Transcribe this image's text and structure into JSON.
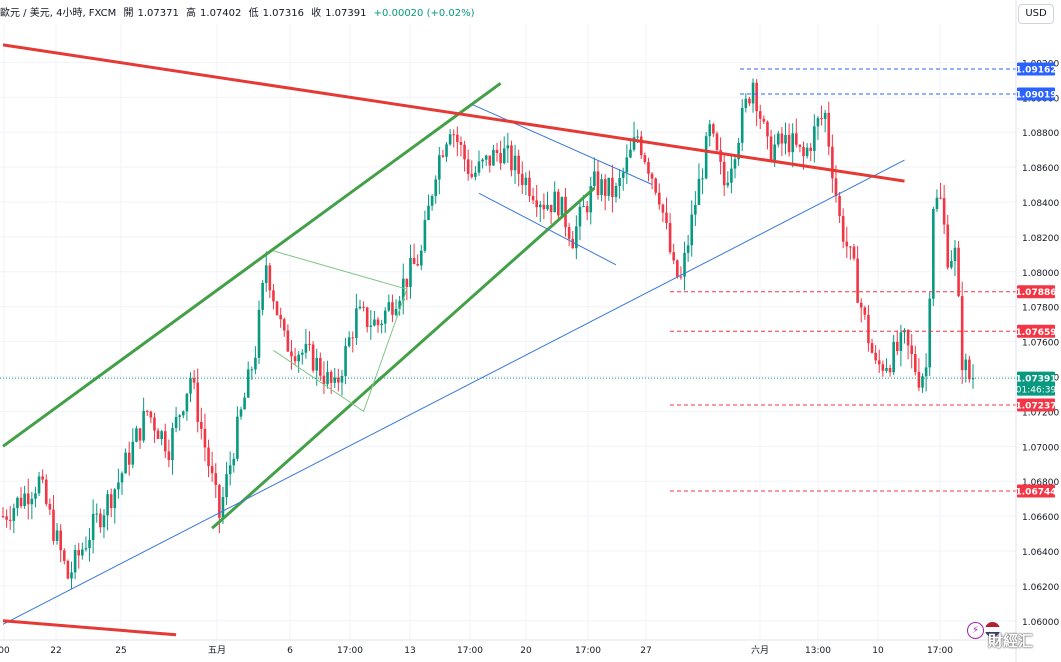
{
  "header": {
    "symbol": "歐元 / 美元, 4小時, FXCM",
    "open_label": "開",
    "open": "1.07371",
    "high_label": "高",
    "high": "1.07402",
    "low_label": "低",
    "low": "1.07316",
    "close_label": "收",
    "close": "1.07391",
    "change": "+0.00020 (+0.02%)"
  },
  "currency_button": "USD",
  "watermark": "財經汇",
  "colors": {
    "up": "#089981",
    "down": "#f23645",
    "green_line": "#43a047",
    "red_line": "#e53935",
    "blue_line": "#3a78d8"
  },
  "icons": [
    "lightning-icon",
    "us-flag-icon"
  ],
  "chart_data": {
    "type": "candlestick",
    "ylim": [
      1.0589,
      1.0942
    ],
    "y_ticks": [
      "1.09200",
      "1.09000",
      "1.08800",
      "1.08600",
      "1.08400",
      "1.08200",
      "1.08000",
      "1.07800",
      "1.07600",
      "1.07400",
      "1.07200",
      "1.07000",
      "1.06800",
      "1.06600",
      "1.06400",
      "1.06200",
      "1.06000"
    ],
    "x_ticks": [
      "00",
      "22",
      "25",
      "五月",
      "6",
      "17:00",
      "13",
      "17:00",
      "20",
      "17:00",
      "27",
      "六月",
      "13:00",
      "10",
      "17:00"
    ],
    "price_labels": [
      {
        "value": "1.09162",
        "style": "blue"
      },
      {
        "value": "1.09019",
        "style": "blue"
      },
      {
        "value": "1.07886",
        "style": "red"
      },
      {
        "value": "1.07659",
        "style": "red"
      },
      {
        "value": "1.07391",
        "style": "green",
        "countdown": "01:46:39"
      },
      {
        "value": "1.07237",
        "style": "red"
      },
      {
        "value": "1.06744",
        "style": "red"
      }
    ],
    "anchors": [
      [
        0,
        1.066
      ],
      [
        10,
        1.068
      ],
      [
        18,
        1.0625
      ],
      [
        24,
        1.065
      ],
      [
        32,
        1.068
      ],
      [
        40,
        1.072
      ],
      [
        46,
        1.07
      ],
      [
        52,
        1.074
      ],
      [
        56,
        1.07
      ],
      [
        60,
        1.066
      ],
      [
        64,
        1.07
      ],
      [
        70,
        1.0755
      ],
      [
        73,
        1.0805
      ],
      [
        78,
        1.076
      ],
      [
        86,
        1.075
      ],
      [
        92,
        1.0732
      ],
      [
        98,
        1.0775
      ],
      [
        104,
        1.077
      ],
      [
        110,
        1.079
      ],
      [
        116,
        1.081
      ],
      [
        120,
        1.086
      ],
      [
        124,
        1.0885
      ],
      [
        130,
        1.0855
      ],
      [
        138,
        1.087
      ],
      [
        144,
        1.0855
      ],
      [
        150,
        1.084
      ],
      [
        154,
        1.084
      ],
      [
        158,
        1.082
      ],
      [
        164,
        1.085
      ],
      [
        170,
        1.0845
      ],
      [
        176,
        1.0878
      ],
      [
        182,
        1.0845
      ],
      [
        186,
        1.08
      ],
      [
        188,
        1.0795
      ],
      [
        192,
        1.084
      ],
      [
        196,
        1.088
      ],
      [
        200,
        1.085
      ],
      [
        204,
        1.088
      ],
      [
        208,
        1.091
      ],
      [
        212,
        1.087
      ],
      [
        218,
        1.0875
      ],
      [
        222,
        1.0865
      ],
      [
        226,
        1.0885
      ],
      [
        228,
        1.089
      ],
      [
        232,
        1.083
      ],
      [
        236,
        1.08
      ],
      [
        238,
        1.078
      ],
      [
        242,
        1.0745
      ],
      [
        246,
        1.075
      ],
      [
        250,
        1.076
      ],
      [
        254,
        1.074
      ],
      [
        256,
        1.0745
      ],
      [
        258,
        1.084
      ],
      [
        260,
        1.084
      ],
      [
        262,
        1.081
      ],
      [
        264,
        1.081
      ],
      [
        266,
        1.075
      ],
      [
        268,
        1.07391
      ]
    ],
    "drawings": {
      "red_trendline_top": [
        [
          0,
          1.093
        ],
        [
          250,
          1.0852
        ]
      ],
      "red_trendline_bottom": [
        [
          0,
          1.06
        ],
        [
          48,
          1.0592
        ]
      ],
      "green_channel_upper": [
        [
          0,
          1.07
        ],
        [
          138,
          1.0908
        ]
      ],
      "green_channel_lower": [
        [
          58,
          1.0653
        ],
        [
          164,
          1.0848
        ]
      ],
      "blue_trendline": [
        [
          0,
          1.0598
        ],
        [
          250,
          1.0864
        ]
      ],
      "blue_channel_upper": [
        [
          130,
          1.0896
        ],
        [
          180,
          1.085
        ]
      ],
      "blue_channel_lower": [
        [
          132,
          1.0845
        ],
        [
          170,
          1.0804
        ]
      ],
      "green_triangle": [
        [
          75,
          1.0812
        ],
        [
          112,
          1.079
        ],
        [
          100,
          1.072
        ],
        [
          75,
          1.0755
        ]
      ]
    }
  }
}
